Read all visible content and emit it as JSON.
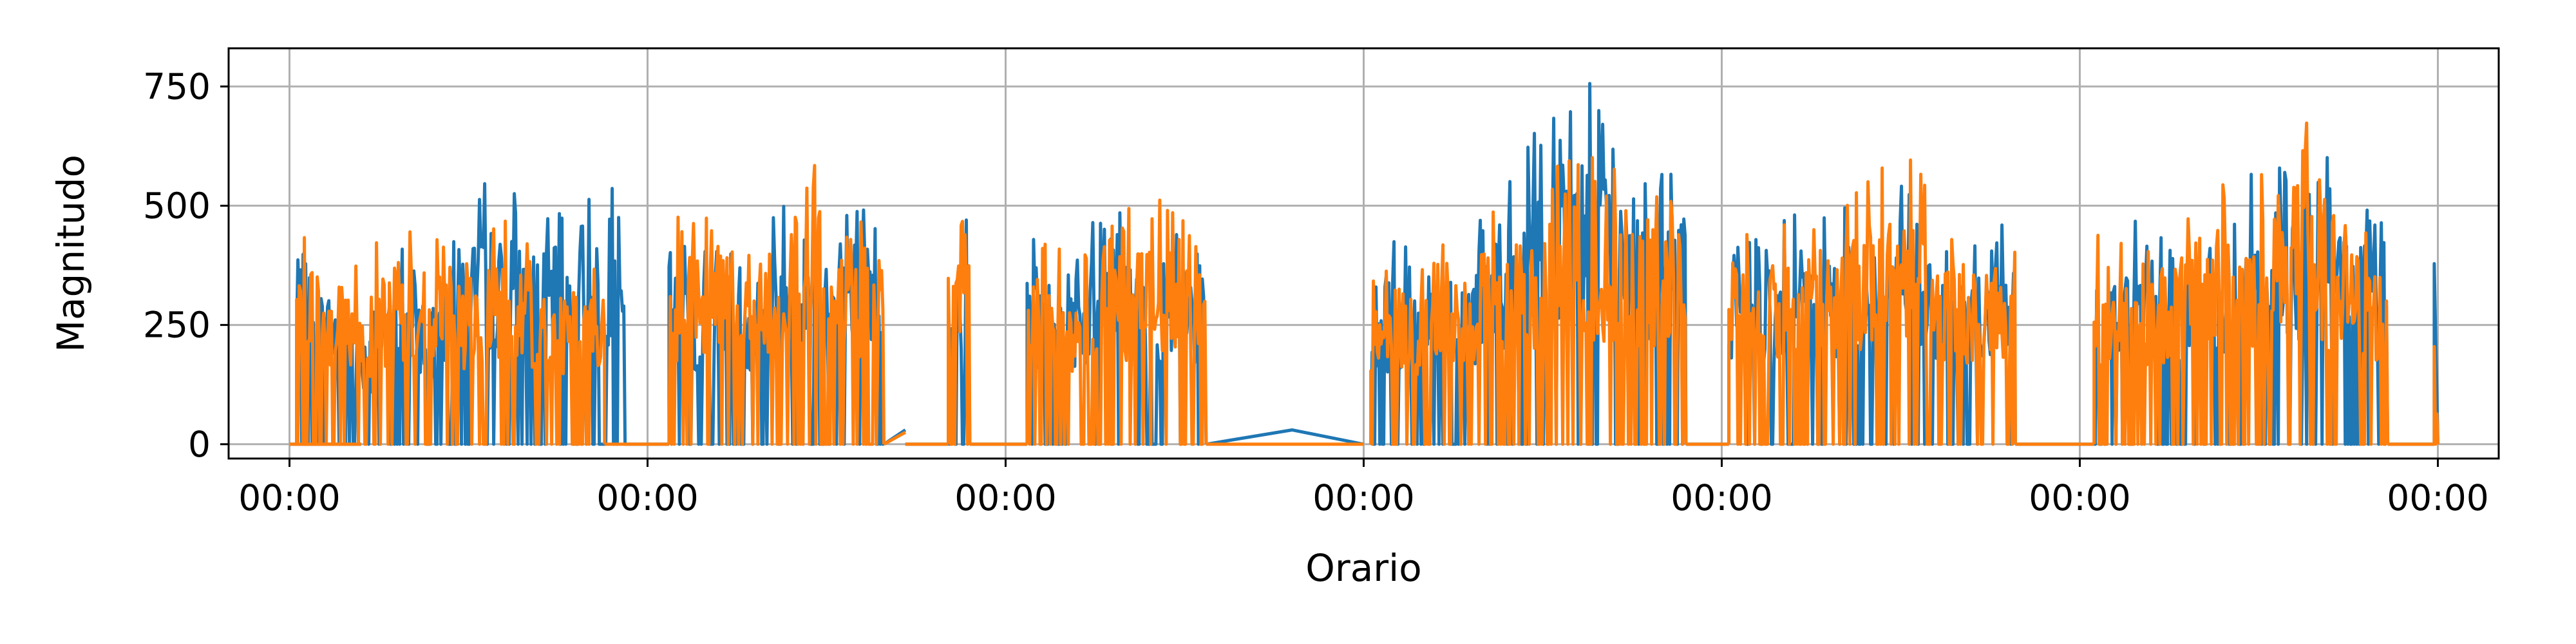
{
  "chart_data": {
    "type": "line",
    "xlabel": "Orario",
    "ylabel": "Magnitudo",
    "x_tick_labels": [
      "00:00",
      "00:00",
      "00:00",
      "00:00",
      "00:00",
      "00:00",
      "00:00"
    ],
    "y_ticks": [
      0,
      250,
      500,
      750
    ],
    "xlim": [
      -0.17,
      6.17
    ],
    "ylim": [
      -30,
      830
    ],
    "grid": true,
    "legend": "none",
    "series": [
      {
        "color": "#1f77b4",
        "segments": [
          {
            "x": [
              0.0,
              0.2
            ],
            "y": [
              0,
              0
            ]
          },
          {
            "x": [
              0.02,
              0.22,
              0.3,
              0.4,
              0.5,
              0.6,
              0.7,
              0.8,
              0.9,
              0.94
            ],
            "y": [
              490,
              300,
              420,
              395,
              560,
              545,
              500,
              540,
              570,
              380
            ],
            "active": true
          },
          {
            "x": [
              0.94,
              1.06
            ],
            "y": [
              0,
              0
            ]
          },
          {
            "x": [
              1.06,
              1.2,
              1.3,
              1.4,
              1.5,
              1.55,
              1.6,
              1.66
            ],
            "y": [
              470,
              410,
              445,
              540,
              560,
              650,
              500,
              480
            ],
            "active": true
          },
          {
            "x": [
              1.66,
              1.72
            ],
            "y": [
              0,
              30
            ]
          },
          {
            "x": [
              1.72,
              1.8,
              1.84
            ],
            "y": [
              0,
              0,
              0
            ]
          },
          {
            "x": [
              1.84,
              1.9
            ],
            "y": [
              500,
              475
            ],
            "active": true
          },
          {
            "x": [
              1.9,
              2.06
            ],
            "y": [
              0,
              0
            ]
          },
          {
            "x": [
              2.06,
              2.2,
              2.3,
              2.4,
              2.5,
              2.56
            ],
            "y": [
              450,
              420,
              560,
              480,
              470,
              430
            ],
            "active": true
          },
          {
            "x": [
              2.56,
              2.8,
              3.0
            ],
            "y": [
              0,
              30,
              0
            ]
          },
          {
            "x": [
              3.02,
              3.2,
              3.3,
              3.4,
              3.6,
              3.8,
              3.9
            ],
            "y": [
              430,
              440,
              470,
              560,
              800,
              600,
              720
            ],
            "active": true
          },
          {
            "x": [
              3.9,
              4.02
            ],
            "y": [
              0,
              0
            ]
          },
          {
            "x": [
              4.02,
              4.2,
              4.3,
              4.4,
              4.5,
              4.6,
              4.7,
              4.82
            ],
            "y": [
              420,
              480,
              500,
              500,
              560,
              450,
              440,
              500
            ],
            "active": true
          },
          {
            "x": [
              4.82,
              5.04
            ],
            "y": [
              0,
              0
            ]
          },
          {
            "x": [
              5.04,
              5.2,
              5.3,
              5.4,
              5.5,
              5.6,
              5.7,
              5.8,
              5.86
            ],
            "y": [
              440,
              500,
              480,
              520,
              590,
              630,
              600,
              500,
              530
            ],
            "active": true
          },
          {
            "x": [
              5.86,
              5.99
            ],
            "y": [
              0,
              0
            ]
          },
          {
            "x": [
              5.99,
              6.0
            ],
            "y": [
              440,
              60
            ],
            "active": true
          }
        ]
      },
      {
        "color": "#ff7f0e",
        "segments": [
          {
            "x": [
              0.0,
              0.2
            ],
            "y": [
              0,
              0
            ]
          },
          {
            "x": [
              0.02,
              0.1,
              0.2,
              0.3,
              0.4,
              0.5,
              0.6,
              0.7,
              0.8,
              0.88
            ],
            "y": [
              485,
              460,
              380,
              480,
              470,
              440,
              500,
              420,
              410,
              380
            ],
            "active": true
          },
          {
            "x": [
              0.88,
              1.06
            ],
            "y": [
              0,
              0
            ]
          },
          {
            "x": [
              1.06,
              1.2,
              1.3,
              1.4,
              1.5,
              1.6,
              1.66
            ],
            "y": [
              470,
              520,
              440,
              550,
              660,
              510,
              470
            ],
            "active": true
          },
          {
            "x": [
              1.66,
              1.72
            ],
            "y": [
              0,
              25
            ]
          },
          {
            "x": [
              1.72,
              1.84
            ],
            "y": [
              0,
              0
            ]
          },
          {
            "x": [
              1.84,
              1.9
            ],
            "y": [
              480,
              470
            ],
            "active": true
          },
          {
            "x": [
              1.9,
              2.06
            ],
            "y": [
              0,
              0
            ]
          },
          {
            "x": [
              2.06,
              2.2,
              2.3,
              2.4,
              2.5,
              2.56
            ],
            "y": [
              440,
              400,
              470,
              530,
              570,
              430
            ],
            "active": true
          },
          {
            "x": [
              2.56,
              3.0
            ],
            "y": [
              0,
              0
            ]
          },
          {
            "x": [
              3.02,
              3.2,
              3.3,
              3.4,
              3.6,
              3.8,
              3.9
            ],
            "y": [
              410,
              420,
              440,
              520,
              630,
              540,
              520
            ],
            "active": true
          },
          {
            "x": [
              3.9,
              4.02
            ],
            "y": [
              0,
              0
            ]
          },
          {
            "x": [
              4.02,
              4.2,
              4.3,
              4.4,
              4.5,
              4.6,
              4.7,
              4.82
            ],
            "y": [
              500,
              480,
              520,
              560,
              650,
              500,
              480,
              510
            ],
            "active": true
          },
          {
            "x": [
              4.82,
              5.04
            ],
            "y": [
              0,
              0
            ]
          },
          {
            "x": [
              5.04,
              5.2,
              5.3,
              5.4,
              5.5,
              5.6,
              5.7,
              5.8,
              5.86
            ],
            "y": [
              440,
              460,
              500,
              595,
              560,
              760,
              540,
              500,
              450
            ],
            "active": true
          },
          {
            "x": [
              5.86,
              5.99
            ],
            "y": [
              0,
              0
            ]
          },
          {
            "x": [
              5.99,
              6.0
            ],
            "y": [
              420,
              0
            ],
            "active": true
          }
        ]
      }
    ]
  }
}
